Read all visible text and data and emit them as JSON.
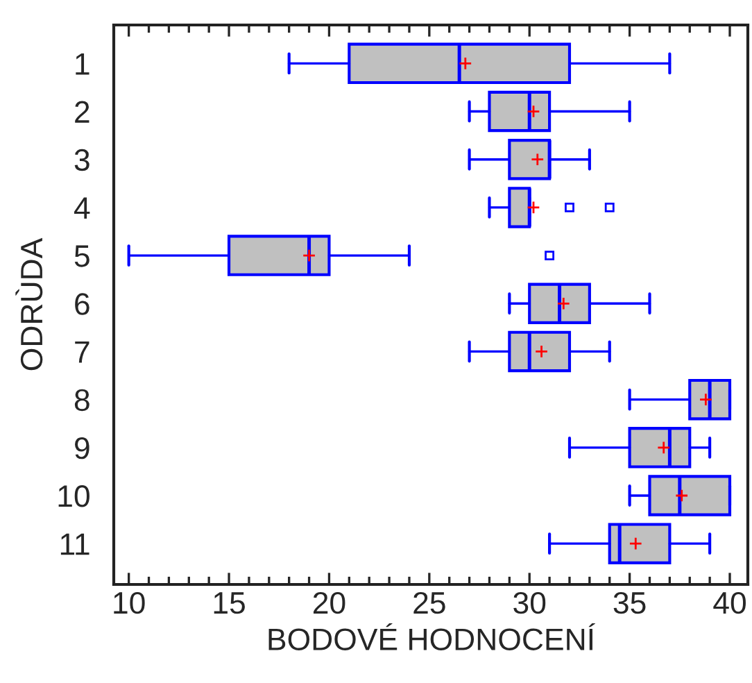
{
  "chart_data": {
    "type": "box",
    "orientation": "horizontal",
    "xlabel": "BODOVÉ HODNOCENÍ",
    "ylabel": "ODRÙDA",
    "categories": [
      "1",
      "2",
      "3",
      "4",
      "5",
      "6",
      "7",
      "8",
      "9",
      "10",
      "11"
    ],
    "boxes": [
      {
        "low": 18,
        "q1": 21,
        "median": 26.5,
        "q3": 32,
        "high": 37,
        "mean": 26.8
      },
      {
        "low": 27,
        "q1": 28,
        "median": 30,
        "q3": 31,
        "high": 35,
        "mean": 30.2
      },
      {
        "low": 27,
        "q1": 29,
        "median": 31,
        "q3": 31,
        "high": 33,
        "mean": 30.4
      },
      {
        "low": 28,
        "q1": 29,
        "median": 30,
        "q3": 30,
        "high": 30,
        "mean": 30.2,
        "outliers": [
          32,
          34
        ]
      },
      {
        "low": 10,
        "q1": 15,
        "median": 19,
        "q3": 20,
        "high": 24,
        "mean": 19,
        "outliers": [
          31
        ]
      },
      {
        "low": 29,
        "q1": 30,
        "median": 31.5,
        "q3": 33,
        "high": 36,
        "mean": 31.7
      },
      {
        "low": 27,
        "q1": 29,
        "median": 30,
        "q3": 32,
        "high": 34,
        "mean": 30.6
      },
      {
        "low": 35,
        "q1": 38,
        "median": 39,
        "q3": 40,
        "high": 40,
        "mean": 38.8
      },
      {
        "low": 32,
        "q1": 35,
        "median": 37,
        "q3": 38,
        "high": 39,
        "mean": 36.7
      },
      {
        "low": 35,
        "q1": 36,
        "median": 37.5,
        "q3": 40,
        "high": 40,
        "mean": 37.6
      },
      {
        "low": 31,
        "q1": 34,
        "median": 34.5,
        "q3": 37,
        "high": 39,
        "mean": 35.3
      }
    ],
    "color": "#c0c0c0",
    "xlim": [
      9.25,
      40.9
    ],
    "xticks": [
      10,
      {
        "value": 11,
        "label": null
      },
      {
        "value": 12,
        "label": null
      },
      {
        "value": 13,
        "label": null
      },
      {
        "value": 14,
        "label": null
      },
      15,
      {
        "value": 16,
        "label": null
      },
      {
        "value": 17,
        "label": null
      },
      {
        "value": 18,
        "label": null
      },
      {
        "value": 19,
        "label": null
      },
      20,
      {
        "value": 21,
        "label": null
      },
      {
        "value": 22,
        "label": null
      },
      {
        "value": 23,
        "label": null
      },
      {
        "value": 24,
        "label": null
      },
      25,
      {
        "value": 26,
        "label": null
      },
      {
        "value": 27,
        "label": null
      },
      {
        "value": 28,
        "label": null
      },
      {
        "value": 29,
        "label": null
      },
      30,
      {
        "value": 31,
        "label": null
      },
      {
        "value": 32,
        "label": null
      },
      {
        "value": 33,
        "label": null
      },
      {
        "value": 34,
        "label": null
      },
      35,
      {
        "value": 36,
        "label": null
      },
      {
        "value": 37,
        "label": null
      },
      {
        "value": 38,
        "label": null
      },
      {
        "value": 39,
        "label": null
      },
      40
    ],
    "grid": false,
    "legend": false
  }
}
